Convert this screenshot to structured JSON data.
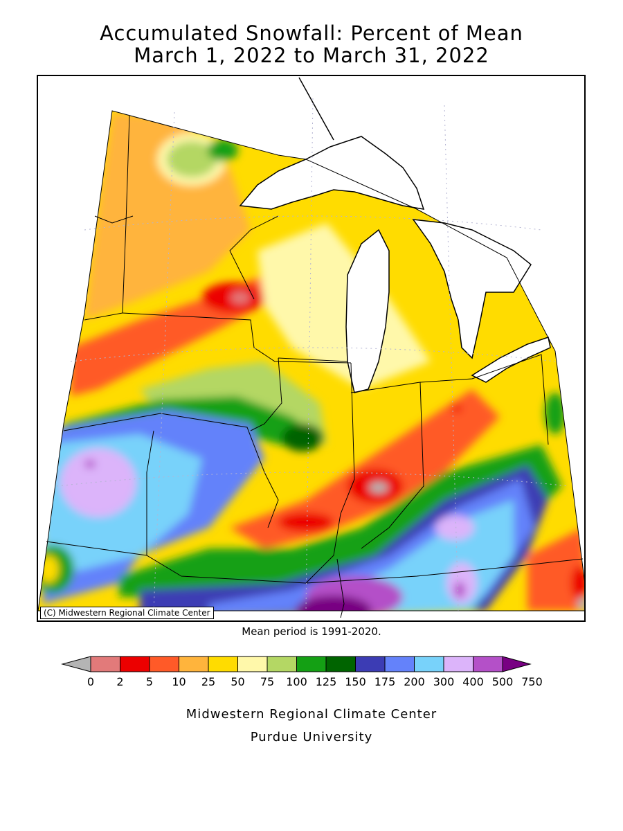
{
  "title": {
    "line1": "Accumulated Snowfall: Percent of Mean",
    "line2": "March 1, 2022 to March 31, 2022"
  },
  "map": {
    "copyright": "(C) Midwestern Regional Climate Center",
    "mean_period": "Mean period is 1991-2020.",
    "water_color": "#ffffff",
    "border_color": "#000000"
  },
  "legend": {
    "labels": [
      "0",
      "2",
      "5",
      "10",
      "25",
      "50",
      "75",
      "100",
      "125",
      "150",
      "175",
      "200",
      "300",
      "400",
      "500",
      "750"
    ],
    "colors": [
      "#b4b4b4",
      "#e27a7a",
      "#ec0000",
      "#ff5a28",
      "#ffb43c",
      "#ffdc00",
      "#fff8aa",
      "#b4d764",
      "#14a014",
      "#006400",
      "#3c3cb4",
      "#6482fa",
      "#78d2fa",
      "#dcb4fa",
      "#b450c8",
      "#780082"
    ]
  },
  "credits": {
    "line1": "Midwestern Regional Climate Center",
    "line2": "Purdue University"
  }
}
